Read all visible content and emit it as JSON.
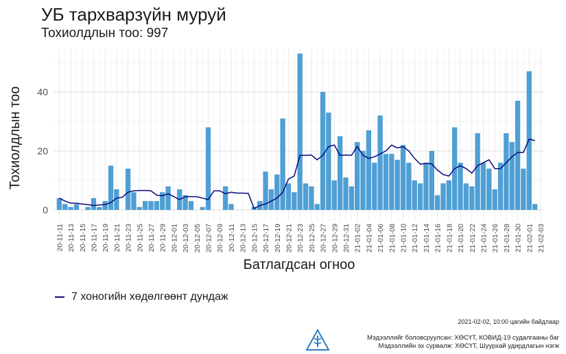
{
  "title": "УБ тархварзүйн муруй",
  "subtitle": "Тохиолдлын тоо: 997",
  "chart_data": {
    "type": "bar",
    "xlabel": "Батлагдсан огноо",
    "ylabel": "Тохиолдлын тоо",
    "ylim": [
      0,
      55
    ],
    "yticks": [
      0,
      20,
      40
    ],
    "grid": true,
    "xtick_labels": [
      "20-11-11",
      "20-11-13",
      "20-11-15",
      "20-11-17",
      "20-11-19",
      "20-11-21",
      "20-11-23",
      "20-11-25",
      "20-11-27",
      "20-11-29",
      "20-12-01",
      "20-12-03",
      "20-12-05",
      "20-12-07",
      "20-12-09",
      "20-12-11",
      "20-12-13",
      "20-12-15",
      "20-12-17",
      "20-12-19",
      "20-12-21",
      "20-12-23",
      "20-12-25",
      "20-12-27",
      "20-12-29",
      "20-12-31",
      "21-01-02",
      "21-01-04",
      "21-01-06",
      "21-01-08",
      "21-01-10",
      "21-01-12",
      "21-01-14",
      "21-01-16",
      "21-01-18",
      "21-01-20",
      "21-01-22",
      "21-01-24",
      "21-01-26",
      "21-01-28",
      "21-01-30",
      "21-02-01",
      "21-02-03"
    ],
    "series": [
      {
        "type": "bar",
        "color": "#4f9fd4",
        "values": [
          4,
          2,
          1,
          2,
          0,
          1,
          4,
          1,
          3,
          15,
          7,
          0,
          14,
          6,
          1,
          3,
          3,
          3,
          6,
          8,
          0,
          7,
          5,
          3,
          0,
          1,
          28,
          0,
          0,
          8,
          2,
          0,
          0,
          0,
          1,
          3,
          13,
          7,
          12,
          31,
          9,
          6,
          53,
          9,
          8,
          2,
          40,
          33,
          10,
          25,
          11,
          8,
          23,
          20,
          27,
          16,
          32,
          19,
          19,
          17,
          22,
          16,
          10,
          9,
          16,
          20,
          5,
          9,
          10,
          28,
          16,
          9,
          8,
          26,
          16,
          14,
          7,
          16,
          26,
          23,
          37,
          14,
          47,
          2
        ]
      },
      {
        "type": "line",
        "name": "7 хоногийн хөдөлгөөнт дундаж",
        "color": "#0a0a7a",
        "values": [
          4,
          3,
          2.3,
          2.3,
          2,
          1.8,
          1.5,
          1.7,
          1.8,
          2.5,
          4,
          4.3,
          6,
          6.5,
          6.6,
          6.6,
          6.5,
          5,
          4.8,
          5.5,
          4.5,
          3.5,
          4.5,
          4.5,
          4.5,
          4,
          3.5,
          6.5,
          6.5,
          5.5,
          6,
          5.7,
          5.7,
          5.6,
          0.5,
          1.5,
          2,
          3,
          4,
          6,
          10.5,
          11.5,
          18.5,
          18.5,
          18.6,
          17,
          18.5,
          21.5,
          22,
          18.5,
          18.6,
          18.5,
          21.5,
          18.5,
          17.5,
          18,
          19,
          20,
          22,
          21,
          21.5,
          20,
          17.5,
          15.5,
          15.8,
          15.6,
          13.5,
          12,
          11.5,
          14,
          15,
          14,
          12.5,
          15,
          16,
          17,
          14,
          14,
          16,
          18,
          19.5,
          19.5,
          24,
          23.5
        ]
      }
    ]
  },
  "legend": {
    "label": "7 хоногийн хөдөлгөөнт дундаж",
    "position": "bottom-left"
  },
  "updated": "2021-02-02, 10:00 цагийн байдлаар",
  "footer": {
    "line1": "Мэдээллийг боловсруулсан: ХӨСҮТ, КОВИД-19 судалгааны баг",
    "line2": "Мэдээллийн эх сурвалж: ХӨСҮТ, Шуурхай удирдлагын нэгж"
  }
}
